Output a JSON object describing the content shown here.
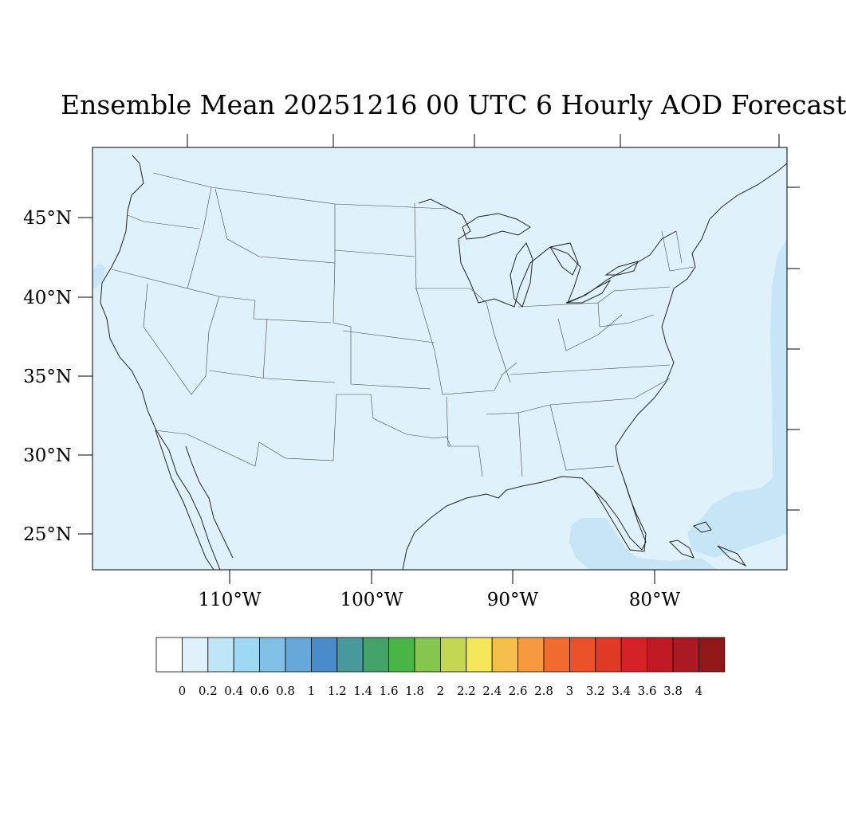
{
  "title": "Ensemble Mean 20251216 00 UTC 6 Hourly AOD Forecast",
  "map": {
    "background_color": "#dff2fb",
    "tint_color": "#c6e6f7",
    "lat_labels": [
      "45°N",
      "40°N",
      "35°N",
      "30°N",
      "25°N"
    ],
    "lon_labels": [
      "110°W",
      "100°W",
      "90°W",
      "80°W"
    ]
  },
  "colorbar": {
    "labels": [
      "0",
      "0.2",
      "0.4",
      "0.6",
      "0.8",
      "1",
      "1.2",
      "1.4",
      "1.6",
      "1.8",
      "2",
      "2.2",
      "2.4",
      "2.6",
      "2.8",
      "3",
      "3.2",
      "3.4",
      "3.6",
      "3.8",
      "4"
    ],
    "colors": [
      "#ffffff",
      "#dff2fb",
      "#bfe6f7",
      "#9fd8f3",
      "#82bfe5",
      "#66a8da",
      "#4a8bc9",
      "#489a9d",
      "#45a36a",
      "#4ab547",
      "#86c54e",
      "#c5d653",
      "#f6e75a",
      "#f6bf4a",
      "#f59a3e",
      "#f26c30",
      "#ea5129",
      "#e03a27",
      "#d42228",
      "#c01b25",
      "#ab1a22",
      "#911718"
    ]
  }
}
